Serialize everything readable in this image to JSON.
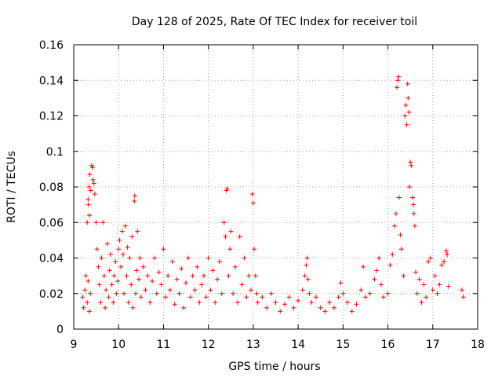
{
  "chart_data": {
    "type": "scatter",
    "title": "Day 128 of 2025, Rate Of TEC Index for receiver toil",
    "xlabel": "GPS time / hours",
    "ylabel": "ROTI / TECUs",
    "xlim": [
      9,
      18
    ],
    "ylim": [
      0,
      0.16
    ],
    "xticks": [
      "9",
      "10",
      "11",
      "12",
      "13",
      "14",
      "15",
      "16",
      "17",
      "18"
    ],
    "yticks": [
      "0",
      "0.02",
      "0.04",
      "0.06",
      "0.08",
      "0.1",
      "0.12",
      "0.14",
      "0.16"
    ],
    "grid": true,
    "marker": "+",
    "color": "#ff0000",
    "series": [
      {
        "name": "ROTI",
        "points": [
          [
            9.2,
            0.018
          ],
          [
            9.22,
            0.012
          ],
          [
            9.25,
            0.022
          ],
          [
            9.27,
            0.03
          ],
          [
            9.3,
            0.015
          ],
          [
            9.32,
            0.027
          ],
          [
            9.35,
            0.01
          ],
          [
            9.37,
            0.02
          ],
          [
            9.3,
            0.06
          ],
          [
            9.32,
            0.073
          ],
          [
            9.34,
            0.08
          ],
          [
            9.36,
            0.087
          ],
          [
            9.38,
            0.078
          ],
          [
            9.4,
            0.092
          ],
          [
            9.42,
            0.091
          ],
          [
            9.43,
            0.084
          ],
          [
            9.45,
            0.082
          ],
          [
            9.47,
            0.076
          ],
          [
            9.35,
            0.064
          ],
          [
            9.33,
            0.07
          ],
          [
            9.5,
            0.06
          ],
          [
            9.52,
            0.045
          ],
          [
            9.55,
            0.035
          ],
          [
            9.57,
            0.025
          ],
          [
            9.6,
            0.015
          ],
          [
            9.62,
            0.04
          ],
          [
            9.65,
            0.06
          ],
          [
            9.68,
            0.03
          ],
          [
            9.7,
            0.012
          ],
          [
            9.72,
            0.022
          ],
          [
            9.75,
            0.048
          ],
          [
            9.78,
            0.018
          ],
          [
            9.8,
            0.033
          ],
          [
            9.82,
            0.042
          ],
          [
            9.85,
            0.025
          ],
          [
            9.88,
            0.015
          ],
          [
            9.9,
            0.03
          ],
          [
            9.93,
            0.038
          ],
          [
            9.95,
            0.02
          ],
          [
            9.98,
            0.027
          ],
          [
            10.0,
            0.045
          ],
          [
            10.02,
            0.05
          ],
          [
            10.05,
            0.035
          ],
          [
            10.08,
            0.055
          ],
          [
            10.1,
            0.042
          ],
          [
            10.12,
            0.02
          ],
          [
            10.15,
            0.058
          ],
          [
            10.18,
            0.03
          ],
          [
            10.2,
            0.046
          ],
          [
            10.22,
            0.015
          ],
          [
            10.25,
            0.04
          ],
          [
            10.28,
            0.025
          ],
          [
            10.3,
            0.052
          ],
          [
            10.32,
            0.012
          ],
          [
            10.35,
            0.072
          ],
          [
            10.36,
            0.075
          ],
          [
            10.38,
            0.02
          ],
          [
            10.4,
            0.033
          ],
          [
            10.42,
            0.055
          ],
          [
            10.45,
            0.028
          ],
          [
            10.48,
            0.04
          ],
          [
            10.5,
            0.018
          ],
          [
            10.55,
            0.035
          ],
          [
            10.6,
            0.022
          ],
          [
            10.65,
            0.03
          ],
          [
            10.7,
            0.015
          ],
          [
            10.75,
            0.027
          ],
          [
            10.8,
            0.04
          ],
          [
            10.85,
            0.02
          ],
          [
            10.9,
            0.032
          ],
          [
            10.95,
            0.025
          ],
          [
            11.0,
            0.045
          ],
          [
            11.05,
            0.018
          ],
          [
            11.1,
            0.03
          ],
          [
            11.15,
            0.022
          ],
          [
            11.2,
            0.038
          ],
          [
            11.25,
            0.014
          ],
          [
            11.3,
            0.028
          ],
          [
            11.35,
            0.02
          ],
          [
            11.4,
            0.034
          ],
          [
            11.45,
            0.012
          ],
          [
            11.5,
            0.026
          ],
          [
            11.55,
            0.04
          ],
          [
            11.6,
            0.018
          ],
          [
            11.65,
            0.03
          ],
          [
            11.7,
            0.022
          ],
          [
            11.75,
            0.035
          ],
          [
            11.8,
            0.015
          ],
          [
            11.85,
            0.025
          ],
          [
            11.9,
            0.03
          ],
          [
            11.95,
            0.018
          ],
          [
            12.0,
            0.04
          ],
          [
            12.05,
            0.022
          ],
          [
            12.1,
            0.033
          ],
          [
            12.15,
            0.015
          ],
          [
            12.2,
            0.028
          ],
          [
            12.25,
            0.038
          ],
          [
            12.3,
            0.02
          ],
          [
            12.35,
            0.06
          ],
          [
            12.38,
            0.052
          ],
          [
            12.4,
            0.078
          ],
          [
            12.42,
            0.079
          ],
          [
            12.45,
            0.03
          ],
          [
            12.48,
            0.045
          ],
          [
            12.5,
            0.055
          ],
          [
            12.55,
            0.02
          ],
          [
            12.6,
            0.035
          ],
          [
            12.65,
            0.015
          ],
          [
            12.7,
            0.052
          ],
          [
            12.75,
            0.025
          ],
          [
            12.8,
            0.04
          ],
          [
            12.85,
            0.018
          ],
          [
            12.9,
            0.03
          ],
          [
            12.95,
            0.022
          ],
          [
            12.98,
            0.076
          ],
          [
            13.0,
            0.071
          ],
          [
            13.02,
            0.045
          ],
          [
            13.05,
            0.03
          ],
          [
            13.08,
            0.02
          ],
          [
            13.1,
            0.015
          ],
          [
            13.2,
            0.018
          ],
          [
            13.3,
            0.012
          ],
          [
            13.4,
            0.02
          ],
          [
            13.5,
            0.015
          ],
          [
            13.6,
            0.01
          ],
          [
            13.7,
            0.014
          ],
          [
            13.8,
            0.018
          ],
          [
            13.9,
            0.012
          ],
          [
            14.0,
            0.016
          ],
          [
            14.1,
            0.022
          ],
          [
            14.15,
            0.03
          ],
          [
            14.18,
            0.036
          ],
          [
            14.2,
            0.04
          ],
          [
            14.22,
            0.028
          ],
          [
            14.25,
            0.02
          ],
          [
            14.3,
            0.015
          ],
          [
            14.4,
            0.018
          ],
          [
            14.5,
            0.012
          ],
          [
            14.6,
            0.01
          ],
          [
            14.7,
            0.015
          ],
          [
            14.8,
            0.012
          ],
          [
            14.9,
            0.018
          ],
          [
            14.95,
            0.026
          ],
          [
            15.0,
            0.02
          ],
          [
            15.1,
            0.015
          ],
          [
            15.2,
            0.01
          ],
          [
            15.3,
            0.014
          ],
          [
            15.4,
            0.022
          ],
          [
            15.45,
            0.035
          ],
          [
            15.5,
            0.018
          ],
          [
            15.6,
            0.02
          ],
          [
            15.7,
            0.028
          ],
          [
            15.75,
            0.033
          ],
          [
            15.8,
            0.04
          ],
          [
            15.85,
            0.025
          ],
          [
            15.9,
            0.018
          ],
          [
            16.0,
            0.02
          ],
          [
            16.05,
            0.036
          ],
          [
            16.1,
            0.042
          ],
          [
            16.15,
            0.058
          ],
          [
            16.18,
            0.065
          ],
          [
            16.2,
            0.136
          ],
          [
            16.22,
            0.14
          ],
          [
            16.24,
            0.142
          ],
          [
            16.25,
            0.074
          ],
          [
            16.28,
            0.053
          ],
          [
            16.3,
            0.045
          ],
          [
            16.35,
            0.03
          ],
          [
            16.38,
            0.12
          ],
          [
            16.4,
            0.126
          ],
          [
            16.42,
            0.115
          ],
          [
            16.44,
            0.138
          ],
          [
            16.45,
            0.13
          ],
          [
            16.47,
            0.122
          ],
          [
            16.48,
            0.08
          ],
          [
            16.5,
            0.094
          ],
          [
            16.52,
            0.092
          ],
          [
            16.55,
            0.074
          ],
          [
            16.57,
            0.07
          ],
          [
            16.58,
            0.065
          ],
          [
            16.6,
            0.058
          ],
          [
            16.62,
            0.032
          ],
          [
            16.65,
            0.02
          ],
          [
            16.7,
            0.028
          ],
          [
            16.75,
            0.015
          ],
          [
            16.8,
            0.025
          ],
          [
            16.85,
            0.018
          ],
          [
            16.9,
            0.038
          ],
          [
            16.95,
            0.04
          ],
          [
            17.0,
            0.022
          ],
          [
            17.05,
            0.03
          ],
          [
            17.1,
            0.02
          ],
          [
            17.15,
            0.025
          ],
          [
            17.2,
            0.036
          ],
          [
            17.25,
            0.038
          ],
          [
            17.3,
            0.044
          ],
          [
            17.32,
            0.042
          ],
          [
            17.35,
            0.024
          ],
          [
            17.65,
            0.022
          ],
          [
            17.68,
            0.018
          ]
        ]
      }
    ]
  }
}
